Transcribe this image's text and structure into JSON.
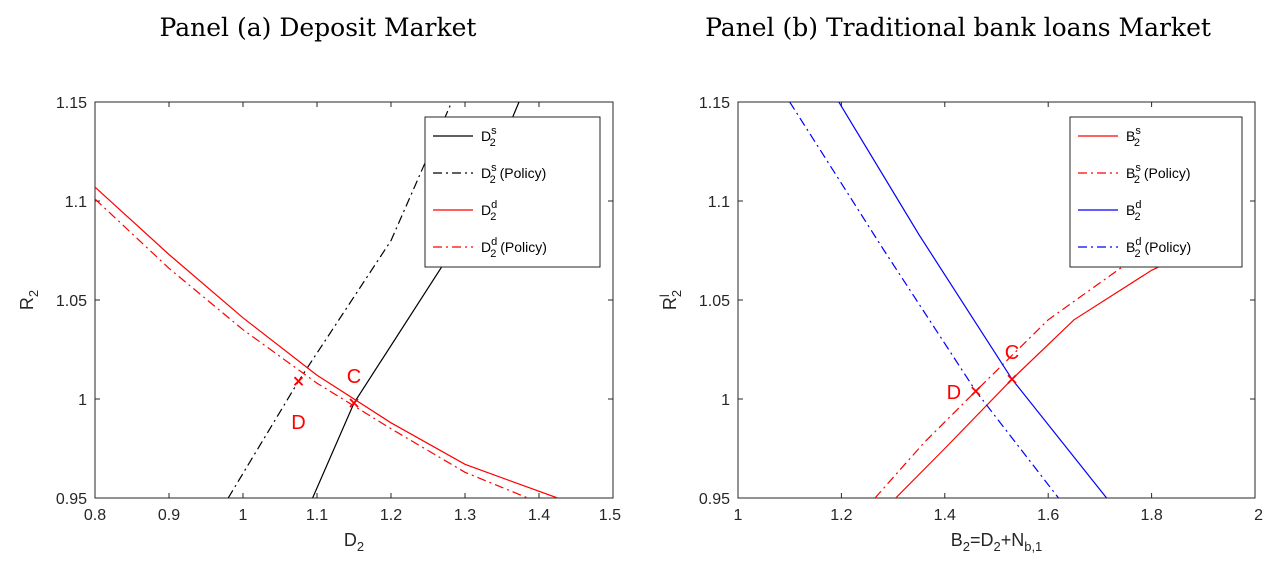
{
  "chart_data": [
    {
      "type": "line",
      "title": "Panel (a) Deposit Market",
      "xlabel": "D_2",
      "ylabel": "R_2",
      "xlim": [
        0.8,
        1.5
      ],
      "ylim": [
        0.95,
        1.15
      ],
      "xticks": [
        "0.8",
        "0.9",
        "1",
        "1.1",
        "1.2",
        "1.3",
        "1.4",
        "1.5"
      ],
      "yticks": [
        "0.95",
        "1",
        "1.05",
        "1.1",
        "1.15"
      ],
      "grid": false,
      "legend_position": "top-right",
      "series": [
        {
          "name": "D_2^s",
          "legend_main": "D",
          "legend_sup": "s",
          "legend_sub": "2",
          "legend_suffix": "",
          "color": "#000000",
          "dash": "solid",
          "points": [
            [
              1.094,
              0.95
            ],
            [
              1.15,
              0.998
            ],
            [
              1.3,
              1.085
            ],
            [
              1.373,
              1.15
            ]
          ]
        },
        {
          "name": "D_2^s (Policy)",
          "legend_main": "D",
          "legend_sup": "s",
          "legend_sub": "2",
          "legend_suffix": " (Policy)",
          "color": "#000000",
          "dash": "dashdot",
          "points": [
            [
              0.98,
              0.95
            ],
            [
              1.075,
              1.009
            ],
            [
              1.2,
              1.08
            ],
            [
              1.282,
              1.15
            ]
          ]
        },
        {
          "name": "D_2^d",
          "legend_main": "D",
          "legend_sup": "d",
          "legend_sub": "2",
          "legend_suffix": "",
          "color": "#ff0000",
          "dash": "solid",
          "points": [
            [
              0.8,
              1.107
            ],
            [
              0.9,
              1.073
            ],
            [
              1.0,
              1.041
            ],
            [
              1.1,
              1.012
            ],
            [
              1.2,
              0.988
            ],
            [
              1.3,
              0.967
            ],
            [
              1.425,
              0.95
            ]
          ]
        },
        {
          "name": "D_2^d (Policy)",
          "legend_main": "D",
          "legend_sup": "d",
          "legend_sub": "2",
          "legend_suffix": " (Policy)",
          "color": "#ff0000",
          "dash": "dashdot",
          "points": [
            [
              0.8,
              1.101
            ],
            [
              0.9,
              1.066
            ],
            [
              1.0,
              1.035
            ],
            [
              1.1,
              1.008
            ],
            [
              1.2,
              0.985
            ],
            [
              1.3,
              0.963
            ],
            [
              1.385,
              0.95
            ]
          ]
        }
      ],
      "markers": [
        {
          "x": 1.075,
          "y": 1.009,
          "label": "D",
          "label_offset": "below"
        },
        {
          "x": 1.15,
          "y": 0.998,
          "label": "C",
          "label_offset": "above"
        }
      ]
    },
    {
      "type": "line",
      "title": "Panel (b) Traditional bank loans Market",
      "xlabel": "B_2=D_2+N_b,1",
      "ylabel": "R^l_2",
      "xlim": [
        1,
        2
      ],
      "ylim": [
        0.95,
        1.15
      ],
      "xticks": [
        "1",
        "1.2",
        "1.4",
        "1.6",
        "1.8",
        "2"
      ],
      "yticks": [
        "0.95",
        "1",
        "1.05",
        "1.1",
        "1.15"
      ],
      "grid": false,
      "legend_position": "top-right",
      "series": [
        {
          "name": "B_2^s",
          "legend_main": "B",
          "legend_sup": "s",
          "legend_sub": "2",
          "legend_suffix": "",
          "color": "#ff0000",
          "dash": "solid",
          "points": [
            [
              1.305,
              0.95
            ],
            [
              1.4,
              0.975
            ],
            [
              1.53,
              1.01
            ],
            [
              1.65,
              1.04
            ],
            [
              1.8,
              1.065
            ],
            [
              1.88,
              1.075
            ]
          ]
        },
        {
          "name": "B_2^s (Policy)",
          "legend_main": "B",
          "legend_sup": "s",
          "legend_sub": "2",
          "legend_suffix": " (Policy)",
          "color": "#ff0000",
          "dash": "dashdot",
          "points": [
            [
              1.265,
              0.95
            ],
            [
              1.36,
              0.978
            ],
            [
              1.46,
              1.004
            ],
            [
              1.6,
              1.04
            ],
            [
              1.75,
              1.068
            ],
            [
              1.86,
              1.082
            ]
          ]
        },
        {
          "name": "B_2^d",
          "legend_main": "B",
          "legend_sup": "d",
          "legend_sub": "2",
          "legend_suffix": "",
          "color": "#0000ff",
          "dash": "solid",
          "points": [
            [
              1.195,
              1.15
            ],
            [
              1.35,
              1.083
            ],
            [
              1.53,
              1.01
            ],
            [
              1.713,
              0.95
            ]
          ]
        },
        {
          "name": "B_2^d (Policy)",
          "legend_main": "B",
          "legend_sup": "d",
          "legend_sub": "2",
          "legend_suffix": " (Policy)",
          "color": "#0000ff",
          "dash": "dashdot",
          "points": [
            [
              1.1,
              1.15
            ],
            [
              1.28,
              1.076
            ],
            [
              1.46,
              1.004
            ],
            [
              1.62,
              0.95
            ]
          ]
        }
      ],
      "markers": [
        {
          "x": 1.46,
          "y": 1.004,
          "label": "D",
          "label_offset": "left"
        },
        {
          "x": 1.53,
          "y": 1.01,
          "label": "C",
          "label_offset": "above"
        }
      ]
    }
  ]
}
